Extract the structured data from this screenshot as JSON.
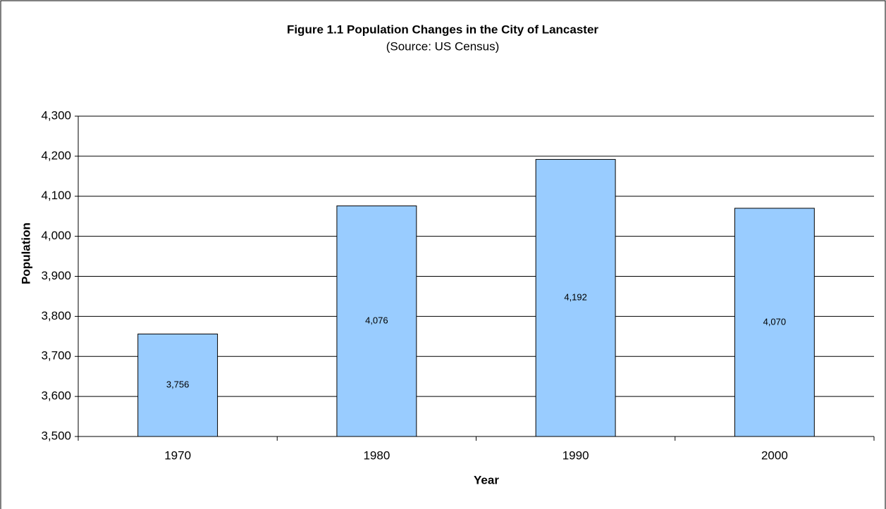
{
  "chart_data": {
    "type": "bar",
    "title": "Figure 1.1 Population Changes in the City of Lancaster",
    "subtitle": "(Source: US Census)",
    "x_label": "Year",
    "y_label": "Population",
    "categories": [
      "1970",
      "1980",
      "1990",
      "2000"
    ],
    "values": [
      3756,
      4076,
      4192,
      4070
    ],
    "value_labels": [
      "3,756",
      "4,076",
      "4,192",
      "4,070"
    ],
    "color": "#99ccff",
    "ylim": [
      3500,
      4300
    ],
    "yticks": [
      {
        "value": 3500,
        "label": "3,500"
      },
      {
        "value": 3600,
        "label": "3,600"
      },
      {
        "value": 3700,
        "label": "3,700"
      },
      {
        "value": 3800,
        "label": "3,800"
      },
      {
        "value": 3900,
        "label": "3,900"
      },
      {
        "value": 4000,
        "label": "4,000"
      },
      {
        "value": 4100,
        "label": "4,100"
      },
      {
        "value": 4200,
        "label": "4,200"
      },
      {
        "value": 4300,
        "label": "4,300"
      }
    ],
    "grid": true
  }
}
